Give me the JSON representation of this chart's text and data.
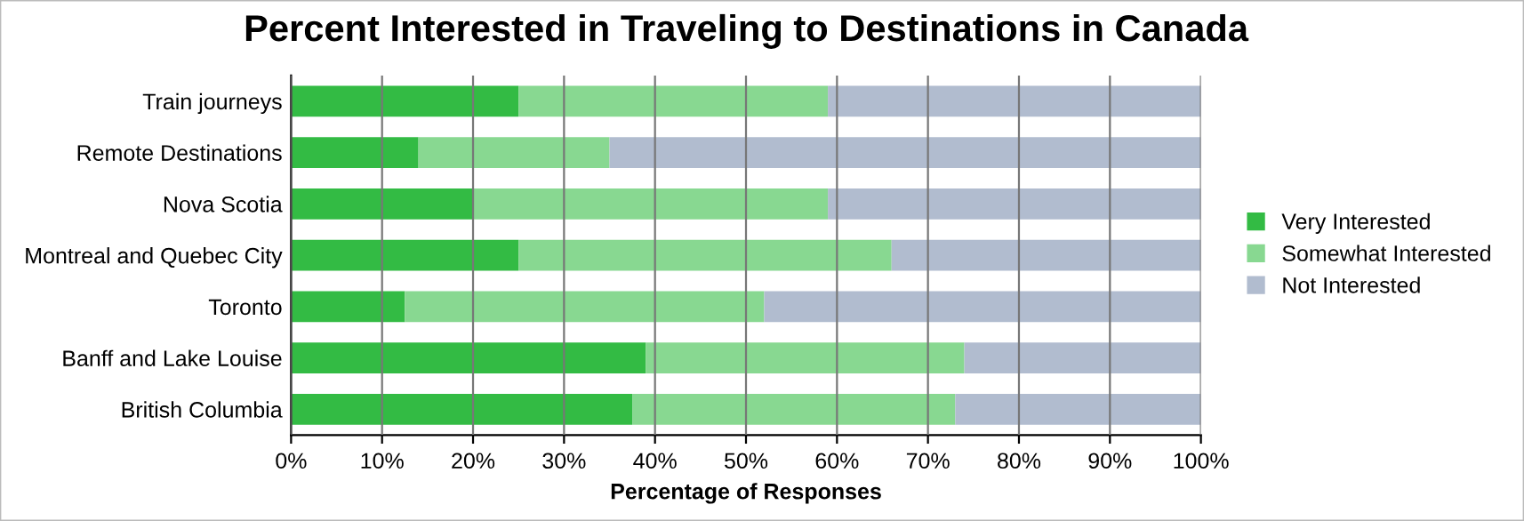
{
  "chart_data": {
    "type": "bar",
    "orientation": "horizontal",
    "stacked": true,
    "title": "Percent Interested in Traveling to Destinations in Canada",
    "xlabel": "Percentage of Responses",
    "categories": [
      "Train journeys",
      "Remote Destinations",
      "Nova Scotia",
      "Montreal and Quebec City",
      "Toronto",
      "Banff and Lake Louise",
      "British Columbia"
    ],
    "series": [
      {
        "name": "Very Interested",
        "color": "#33bb44",
        "values": [
          25,
          14,
          20,
          25,
          12.5,
          39,
          37.5
        ]
      },
      {
        "name": "Somewhat Interested",
        "color": "#88d891",
        "values": [
          34,
          21,
          39,
          41,
          39.5,
          35,
          35.5
        ]
      },
      {
        "name": "Not Interested",
        "color": "#b1bccf",
        "values": [
          41,
          65,
          41,
          34,
          48,
          26,
          27
        ]
      }
    ],
    "xlim": [
      0,
      100
    ],
    "xticks": [
      {
        "value": 0,
        "label": "0%"
      },
      {
        "value": 10,
        "label": "10%"
      },
      {
        "value": 20,
        "label": "20%"
      },
      {
        "value": 30,
        "label": "30%"
      },
      {
        "value": 40,
        "label": "40%"
      },
      {
        "value": 50,
        "label": "50%"
      },
      {
        "value": 60,
        "label": "60%"
      },
      {
        "value": 70,
        "label": "70%"
      },
      {
        "value": 80,
        "label": "80%"
      },
      {
        "value": 90,
        "label": "90%"
      },
      {
        "value": 100,
        "label": "100%"
      }
    ],
    "grid": "x",
    "legend": "right"
  }
}
